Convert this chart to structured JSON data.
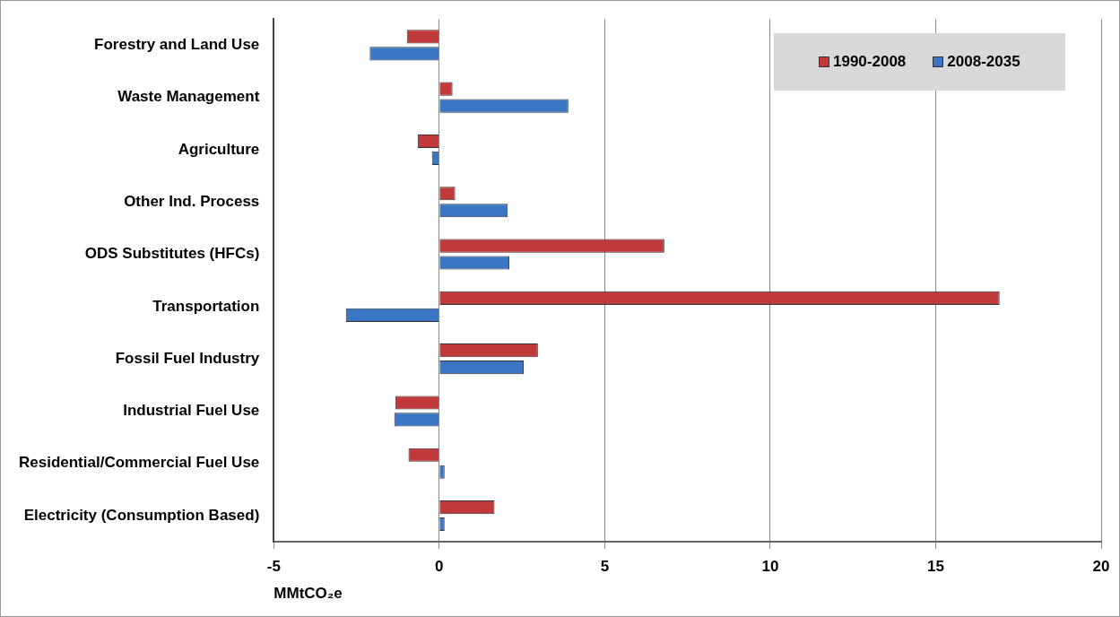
{
  "chart_data": {
    "type": "bar",
    "orientation": "horizontal",
    "xlabel": "MMtCO₂e",
    "categories": [
      "Forestry and Land Use",
      "Waste Management",
      "Agriculture",
      "Other Ind. Process",
      "ODS Substitutes (HFCs)",
      "Transportation",
      "Fossil Fuel Industry",
      "Industrial Fuel Use",
      "Residential/Commercial Fuel Use",
      "Electricity (Consumption Based)"
    ],
    "series": [
      {
        "name": "1990-2008",
        "color": "#c0393b",
        "values": [
          -0.98,
          0.4,
          -0.65,
          0.48,
          6.8,
          16.93,
          2.98,
          -1.33,
          -0.93,
          1.67
        ]
      },
      {
        "name": "2008-2035",
        "color": "#3b76c4",
        "values": [
          -2.1,
          3.9,
          -0.22,
          2.07,
          2.12,
          -2.82,
          2.55,
          -1.36,
          0.16,
          0.16
        ]
      }
    ],
    "xlim": [
      -5,
      20
    ],
    "xticks": [
      -5,
      0,
      5,
      10,
      15,
      20
    ],
    "grid": "x",
    "legend": "top right"
  }
}
